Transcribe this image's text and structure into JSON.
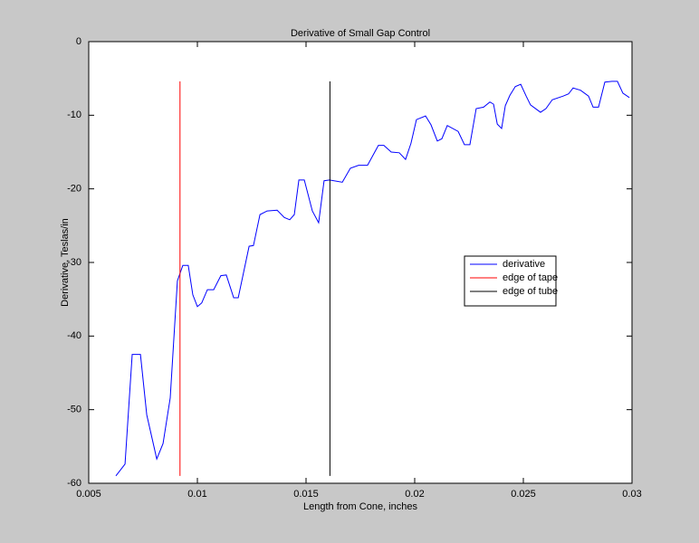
{
  "chart_data": {
    "type": "line",
    "title": "Derivative of Small Gap Control",
    "x_label": "Length from Cone, inches",
    "y_label": "Derivative, Teslas/in",
    "xlim": [
      0.005,
      0.03
    ],
    "xticks": [
      0.005,
      0.01,
      0.015,
      0.02,
      0.025,
      0.03
    ],
    "ylim": [
      -60,
      0
    ],
    "yticks": [
      -60,
      -50,
      -40,
      -30,
      -20,
      -10,
      0
    ],
    "legend": "right",
    "series": [
      {
        "name": "derivative",
        "color": "#0000ff",
        "x": [
          0.00625,
          0.00667,
          0.007,
          0.00738,
          0.00767,
          0.00813,
          0.00842,
          0.00875,
          0.00908,
          0.00933,
          0.00958,
          0.00979,
          0.01,
          0.0102,
          0.01046,
          0.01075,
          0.01108,
          0.01133,
          0.01167,
          0.01188,
          0.01238,
          0.01258,
          0.01288,
          0.01321,
          0.01367,
          0.014,
          0.01425,
          0.01446,
          0.01467,
          0.01492,
          0.01529,
          0.01558,
          0.01583,
          0.01608,
          0.01667,
          0.01704,
          0.01742,
          0.01783,
          0.01833,
          0.01858,
          0.01892,
          0.01929,
          0.01958,
          0.01983,
          0.02008,
          0.0205,
          0.02075,
          0.02104,
          0.02125,
          0.0215,
          0.022,
          0.02229,
          0.02254,
          0.02283,
          0.02317,
          0.02346,
          0.02363,
          0.0238,
          0.024,
          0.02417,
          0.02438,
          0.02463,
          0.02488,
          0.02513,
          0.02533,
          0.02579,
          0.02604,
          0.02633,
          0.02683,
          0.02708,
          0.02729,
          0.02763,
          0.028,
          0.02821,
          0.02846,
          0.02875,
          0.02908,
          0.02933,
          0.02958,
          0.02988
        ],
        "values": [
          -59.0,
          -57.4,
          -42.5,
          -42.5,
          -50.7,
          -56.7,
          -54.6,
          -48.4,
          -32.5,
          -30.4,
          -30.4,
          -34.4,
          -36.0,
          -35.5,
          -33.7,
          -33.7,
          -31.8,
          -31.7,
          -34.8,
          -34.8,
          -27.8,
          -27.7,
          -23.5,
          -23.0,
          -22.9,
          -23.9,
          -24.2,
          -23.5,
          -18.8,
          -18.8,
          -23.0,
          -24.6,
          -18.9,
          -18.8,
          -19.1,
          -17.2,
          -16.8,
          -16.8,
          -14.1,
          -14.1,
          -15.0,
          -15.1,
          -16.0,
          -13.8,
          -10.6,
          -10.1,
          -11.3,
          -13.5,
          -13.2,
          -11.4,
          -12.2,
          -14.0,
          -14.0,
          -9.1,
          -8.9,
          -8.2,
          -8.5,
          -11.2,
          -11.8,
          -8.7,
          -7.3,
          -6.1,
          -5.8,
          -7.4,
          -8.6,
          -9.6,
          -9.1,
          -7.9,
          -7.4,
          -7.1,
          -6.3,
          -6.6,
          -7.4,
          -8.9,
          -8.9,
          -5.5,
          -5.4,
          -5.4,
          -7.0,
          -7.6
        ]
      },
      {
        "name": "edge of tape",
        "color": "#ff0000",
        "x": [
          0.0092,
          0.0092
        ],
        "values": [
          -5.4,
          -59.0
        ]
      },
      {
        "name": "edge of tube",
        "color": "#000000",
        "x": [
          0.0161,
          0.0161
        ],
        "values": [
          -5.4,
          -59.0
        ]
      }
    ]
  }
}
